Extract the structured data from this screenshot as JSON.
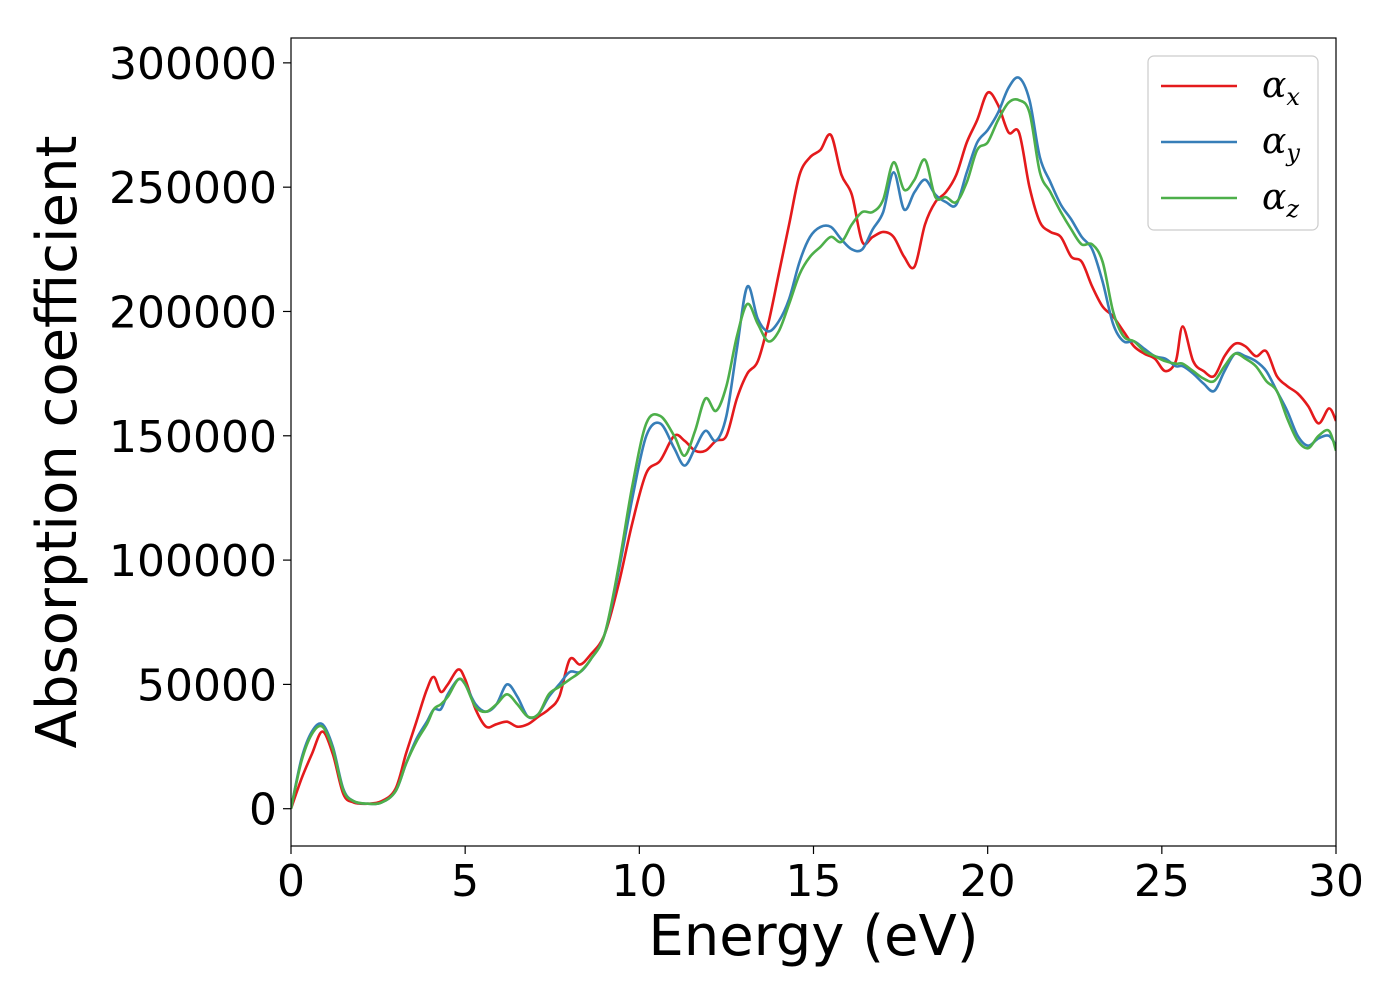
{
  "chart_data": {
    "type": "line",
    "title": "",
    "xlabel": "Energy (eV)",
    "ylabel": "Absorption coefficient",
    "xlim": [
      0,
      30
    ],
    "ylim": [
      -15000,
      310000
    ],
    "xticks": [
      0,
      5,
      10,
      15,
      20,
      25,
      30
    ],
    "yticks": [
      0,
      50000,
      100000,
      150000,
      200000,
      250000,
      300000
    ],
    "grid": false,
    "legend_position": "top-right",
    "series": [
      {
        "name": "α_x",
        "label_base": "α",
        "label_sub": "x",
        "color": "#e41a1c",
        "x": [
          0,
          0.3,
          0.6,
          0.9,
          1.2,
          1.5,
          1.8,
          2.2,
          2.6,
          3.0,
          3.3,
          3.6,
          3.9,
          4.1,
          4.3,
          4.5,
          4.8,
          5.0,
          5.3,
          5.6,
          5.9,
          6.2,
          6.5,
          6.8,
          7.1,
          7.4,
          7.7,
          8.0,
          8.3,
          8.6,
          9.0,
          9.4,
          9.8,
          10.2,
          10.6,
          11.0,
          11.3,
          11.6,
          11.9,
          12.2,
          12.5,
          12.8,
          13.1,
          13.4,
          13.7,
          14.0,
          14.3,
          14.6,
          14.9,
          15.2,
          15.5,
          15.8,
          16.1,
          16.4,
          16.7,
          17.0,
          17.3,
          17.6,
          17.9,
          18.2,
          18.5,
          18.8,
          19.1,
          19.4,
          19.7,
          20.0,
          20.3,
          20.6,
          20.9,
          21.2,
          21.5,
          21.8,
          22.1,
          22.4,
          22.7,
          23.0,
          23.3,
          23.6,
          23.9,
          24.2,
          24.5,
          24.8,
          25.1,
          25.4,
          25.6,
          25.9,
          26.2,
          26.5,
          26.8,
          27.1,
          27.4,
          27.7,
          28.0,
          28.3,
          28.6,
          28.9,
          29.2,
          29.5,
          29.8,
          30.0
        ],
        "y": [
          0,
          12000,
          22000,
          31000,
          22000,
          6000,
          2500,
          2000,
          3000,
          8000,
          22000,
          35000,
          48000,
          53000,
          47000,
          50000,
          56000,
          52000,
          40000,
          33000,
          34000,
          35000,
          33000,
          34000,
          37000,
          40000,
          45000,
          60000,
          58000,
          62000,
          70000,
          90000,
          115000,
          135000,
          140000,
          150000,
          148000,
          144000,
          144000,
          148000,
          150000,
          165000,
          175000,
          180000,
          195000,
          215000,
          235000,
          255000,
          262000,
          265000,
          271000,
          255000,
          247000,
          228000,
          230000,
          232000,
          230000,
          222000,
          218000,
          235000,
          244000,
          248000,
          255000,
          268000,
          277000,
          288000,
          283000,
          272000,
          272000,
          250000,
          236000,
          232000,
          230000,
          222000,
          220000,
          210000,
          202000,
          198000,
          192000,
          186000,
          183000,
          181000,
          176000,
          180000,
          194000,
          180000,
          176000,
          174000,
          182000,
          187000,
          186000,
          182000,
          184000,
          174000,
          170000,
          167000,
          162000,
          155000,
          161000,
          156000
        ]
      },
      {
        "name": "α_y",
        "label_base": "α",
        "label_sub": "y",
        "color": "#377eb8",
        "x": [
          0,
          0.3,
          0.6,
          0.9,
          1.2,
          1.5,
          1.8,
          2.2,
          2.6,
          3.0,
          3.3,
          3.6,
          3.9,
          4.1,
          4.3,
          4.5,
          4.8,
          5.0,
          5.3,
          5.6,
          5.9,
          6.2,
          6.5,
          6.8,
          7.1,
          7.4,
          7.7,
          8.0,
          8.3,
          8.6,
          9.0,
          9.4,
          9.8,
          10.2,
          10.6,
          11.0,
          11.3,
          11.6,
          11.9,
          12.2,
          12.5,
          12.8,
          13.1,
          13.4,
          13.7,
          14.0,
          14.3,
          14.6,
          14.9,
          15.2,
          15.5,
          15.8,
          16.1,
          16.4,
          16.7,
          17.0,
          17.3,
          17.6,
          17.9,
          18.2,
          18.5,
          18.8,
          19.1,
          19.4,
          19.7,
          20.0,
          20.3,
          20.6,
          20.9,
          21.2,
          21.5,
          21.8,
          22.1,
          22.4,
          22.7,
          23.0,
          23.3,
          23.6,
          23.9,
          24.2,
          24.5,
          24.8,
          25.1,
          25.4,
          25.6,
          25.9,
          26.2,
          26.5,
          26.8,
          27.1,
          27.4,
          27.7,
          28.0,
          28.3,
          28.6,
          28.9,
          29.2,
          29.5,
          29.8,
          30.0
        ],
        "y": [
          0,
          20000,
          31000,
          34000,
          25000,
          8000,
          3000,
          2000,
          2500,
          7000,
          18000,
          28000,
          35000,
          40000,
          40000,
          46000,
          52000,
          50000,
          42000,
          39000,
          42000,
          50000,
          45000,
          37000,
          38000,
          45000,
          50000,
          55000,
          55000,
          60000,
          70000,
          95000,
          125000,
          150000,
          155000,
          145000,
          138000,
          145000,
          152000,
          148000,
          158000,
          185000,
          210000,
          197000,
          192000,
          196000,
          205000,
          220000,
          230000,
          234000,
          234000,
          229000,
          225000,
          225000,
          233000,
          240000,
          256000,
          241000,
          248000,
          253000,
          247000,
          244000,
          243000,
          256000,
          268000,
          273000,
          280000,
          290000,
          294000,
          285000,
          262000,
          252000,
          243000,
          237000,
          230000,
          225000,
          212000,
          195000,
          188000,
          188000,
          185000,
          182000,
          181000,
          178000,
          178000,
          175000,
          171000,
          168000,
          176000,
          183000,
          182000,
          180000,
          176000,
          168000,
          160000,
          150000,
          146000,
          149000,
          150000,
          146000
        ]
      },
      {
        "name": "α_z",
        "label_base": "α",
        "label_sub": "z",
        "color": "#4daf4a",
        "x": [
          0,
          0.3,
          0.6,
          0.9,
          1.2,
          1.5,
          1.8,
          2.2,
          2.6,
          3.0,
          3.3,
          3.6,
          3.9,
          4.1,
          4.3,
          4.5,
          4.8,
          5.0,
          5.3,
          5.6,
          5.9,
          6.2,
          6.5,
          6.8,
          7.1,
          7.4,
          7.7,
          8.0,
          8.3,
          8.6,
          9.0,
          9.4,
          9.8,
          10.2,
          10.6,
          11.0,
          11.3,
          11.6,
          11.9,
          12.2,
          12.5,
          12.8,
          13.1,
          13.4,
          13.7,
          14.0,
          14.3,
          14.6,
          14.9,
          15.2,
          15.5,
          15.8,
          16.1,
          16.4,
          16.7,
          17.0,
          17.3,
          17.6,
          17.9,
          18.2,
          18.5,
          18.8,
          19.1,
          19.4,
          19.7,
          20.0,
          20.3,
          20.6,
          20.9,
          21.2,
          21.5,
          21.8,
          22.1,
          22.4,
          22.7,
          23.0,
          23.3,
          23.6,
          23.9,
          24.2,
          24.5,
          24.8,
          25.1,
          25.4,
          25.6,
          25.9,
          26.2,
          26.5,
          26.8,
          27.1,
          27.4,
          27.7,
          28.0,
          28.3,
          28.6,
          28.9,
          29.2,
          29.5,
          29.8,
          30.0
        ],
        "y": [
          0,
          19000,
          30000,
          33000,
          24000,
          7500,
          3000,
          2000,
          2500,
          7000,
          18000,
          27000,
          34000,
          40000,
          42000,
          45000,
          52000,
          50000,
          41000,
          39000,
          42000,
          46000,
          42000,
          37000,
          38000,
          46000,
          49000,
          52000,
          55000,
          60000,
          70000,
          97000,
          130000,
          155000,
          158000,
          150000,
          142000,
          152000,
          165000,
          160000,
          170000,
          190000,
          203000,
          195000,
          188000,
          192000,
          203000,
          215000,
          222000,
          226000,
          230000,
          228000,
          235000,
          240000,
          240000,
          245000,
          260000,
          249000,
          253000,
          261000,
          246000,
          246000,
          244000,
          252000,
          265000,
          268000,
          277000,
          284000,
          285000,
          280000,
          256000,
          248000,
          240000,
          233000,
          227000,
          227000,
          220000,
          200000,
          190000,
          188000,
          184000,
          182000,
          180000,
          179000,
          179000,
          176000,
          173000,
          172000,
          178000,
          183000,
          181000,
          178000,
          172000,
          168000,
          157000,
          148000,
          145000,
          150000,
          152000,
          144000
        ]
      }
    ]
  }
}
